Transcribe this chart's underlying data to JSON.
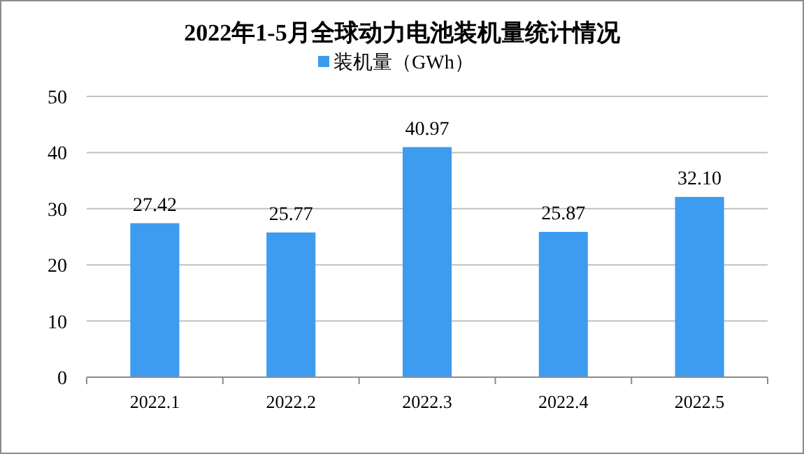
{
  "chart_data": {
    "type": "bar",
    "title": "2022年1-5月全球动力电池装机量统计情况",
    "categories": [
      "2022.1",
      "2022.2",
      "2022.3",
      "2022.4",
      "2022.5"
    ],
    "series": [
      {
        "name": "装机量（GWh）",
        "color": "#3d9cf0",
        "values": [
          27.42,
          25.77,
          40.97,
          25.87,
          32.1
        ],
        "value_labels": [
          "27.42",
          "25.77",
          "40.97",
          "25.87",
          "32.10"
        ]
      }
    ],
    "ylim": [
      0,
      50
    ],
    "yticks": [
      0,
      10,
      20,
      30,
      40,
      50
    ],
    "grid": "y",
    "legend": "top"
  }
}
